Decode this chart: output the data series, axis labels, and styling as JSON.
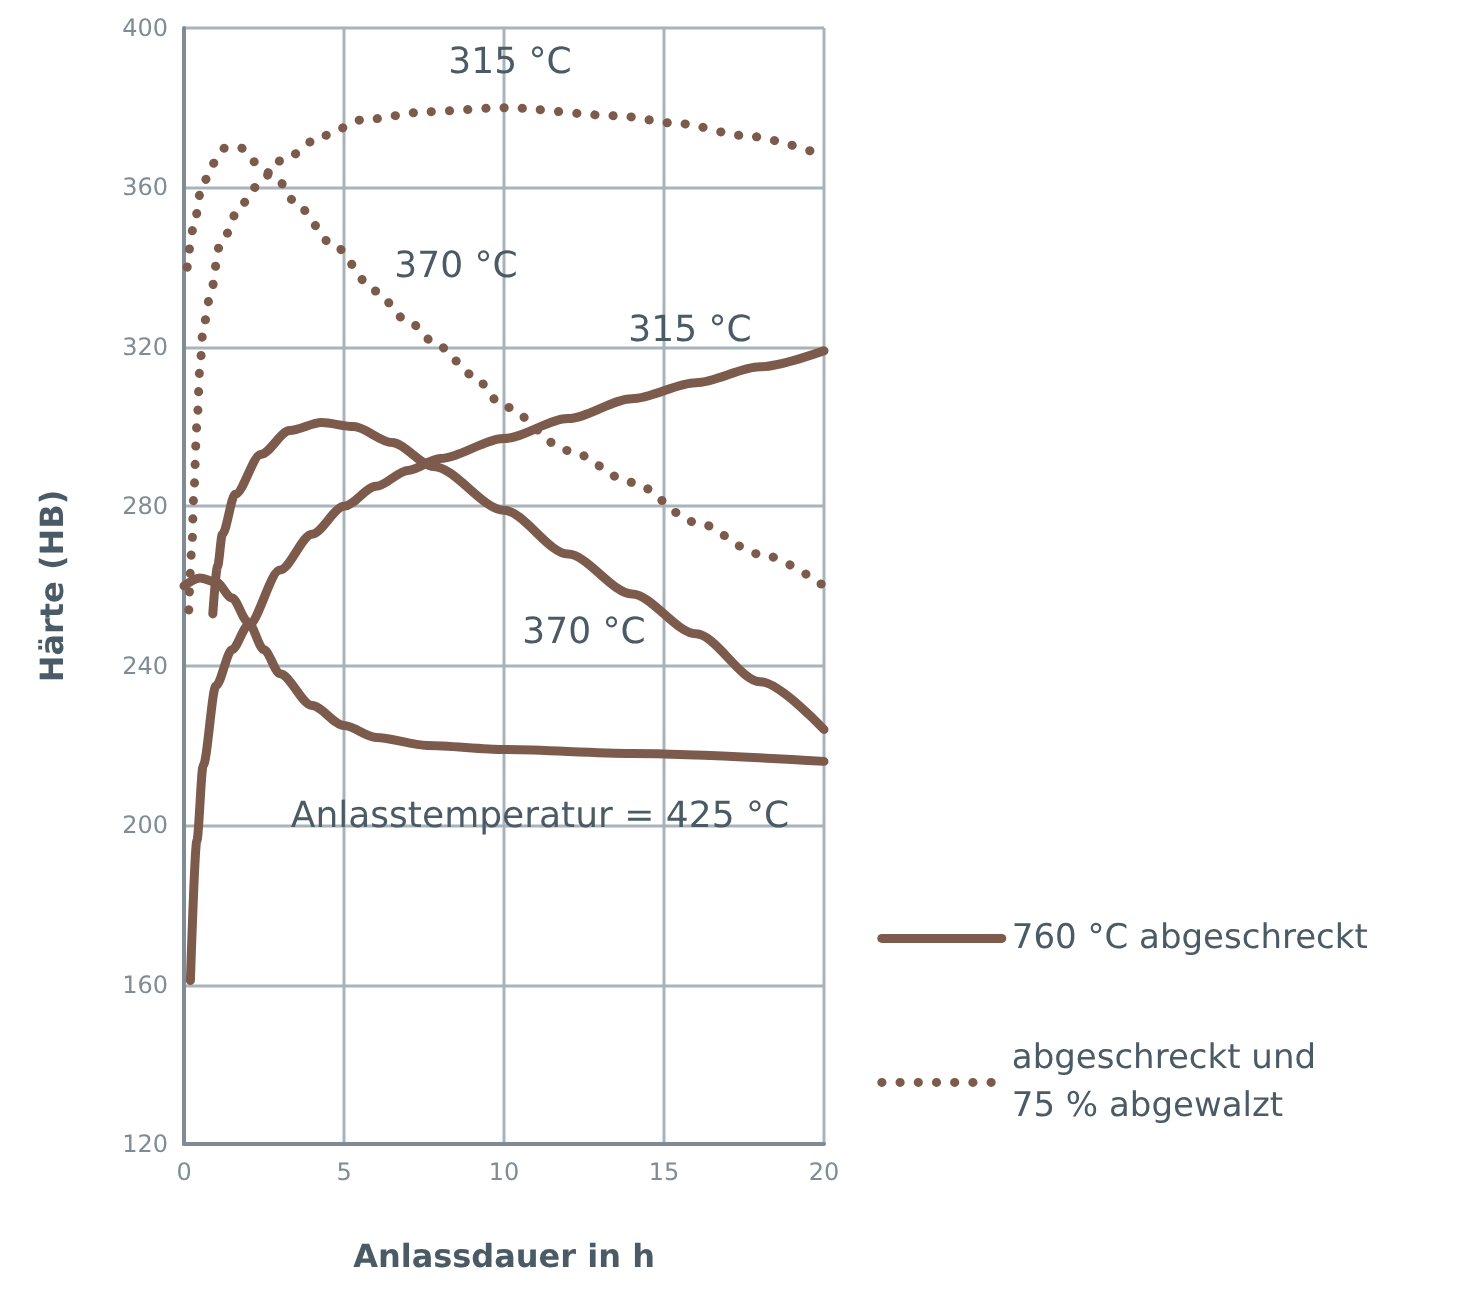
{
  "chart_data": {
    "type": "line",
    "xlabel": "Anlassdauer in h",
    "ylabel": "Härte (HB)",
    "xlim": [
      0,
      20
    ],
    "xticks": [
      0,
      5,
      10,
      15,
      20
    ],
    "ylim": [
      120,
      400
    ],
    "yticks": [
      120,
      160,
      200,
      240,
      280,
      320,
      360,
      400
    ],
    "grid": true,
    "legend": "right",
    "marker": "none",
    "series": [
      {
        "name": "760 °C abgeschreckt",
        "color": "#7d5b4c",
        "line_style": "solid",
        "x": [
          0.2,
          0.4,
          0.6,
          1,
          1.5,
          2,
          3,
          4,
          5,
          6,
          7,
          8,
          10,
          12,
          14,
          16,
          18,
          20
        ],
        "values": [
          161,
          196,
          215,
          235,
          244,
          250,
          264,
          273,
          280,
          285,
          289,
          292,
          297,
          302,
          307,
          311,
          315,
          319
        ]
      },
      {
        "color": "#7d5b4c",
        "line_style": "solid",
        "x": [
          0.9,
          1.05,
          1.2,
          1.6,
          2.4,
          3.3,
          4.3,
          5.3,
          6.5,
          7.8,
          10,
          12,
          14,
          16,
          18,
          20
        ],
        "values": [
          253,
          265,
          273,
          283,
          293,
          299,
          301,
          300,
          296,
          290,
          279,
          268,
          258,
          248,
          236,
          224
        ]
      },
      {
        "color": "#7d5b4c",
        "line_style": "solid",
        "x": [
          0,
          0.5,
          1,
          1.5,
          2,
          2.5,
          3,
          4,
          5,
          6,
          7.6,
          10,
          14,
          20
        ],
        "values": [
          260,
          262,
          261,
          257,
          251,
          244,
          238,
          230,
          225,
          222,
          220,
          219,
          218,
          216
        ]
      },
      {
        "name": "abgeschreckt und\n75 % abgewalzt",
        "color": "#7d5b4c",
        "line_style": "dotted",
        "x": [
          0.15,
          0.25,
          0.3,
          0.4,
          0.5,
          0.6,
          0.85,
          1.1,
          1.75,
          2.2,
          3.1,
          4.35,
          5.6,
          7.6,
          10,
          13.5,
          15.5,
          17.5,
          20
        ],
        "values": [
          254,
          270,
          282,
          300,
          315,
          325,
          334,
          345,
          355,
          360,
          367,
          373,
          377,
          379,
          380,
          378,
          376,
          373,
          368
        ]
      },
      {
        "color": "#7d5b4c",
        "line_style": "dotted",
        "x": [
          0.1,
          0.3,
          0.55,
          0.9,
          1.3,
          1.75,
          2.3,
          2.9,
          3.6,
          4.6,
          6,
          6.9,
          8,
          9,
          10,
          12,
          14,
          16,
          18,
          20
        ],
        "values": [
          340,
          350,
          360,
          366,
          370,
          370,
          366,
          362,
          355,
          346,
          334,
          327,
          320,
          313,
          305,
          294,
          286,
          276,
          268,
          260
        ]
      }
    ],
    "annotations": [
      "315 °C",
      "370 °C",
      "315 °C",
      "370 °C",
      "Anlasstemperatur = 425 °C"
    ]
  }
}
